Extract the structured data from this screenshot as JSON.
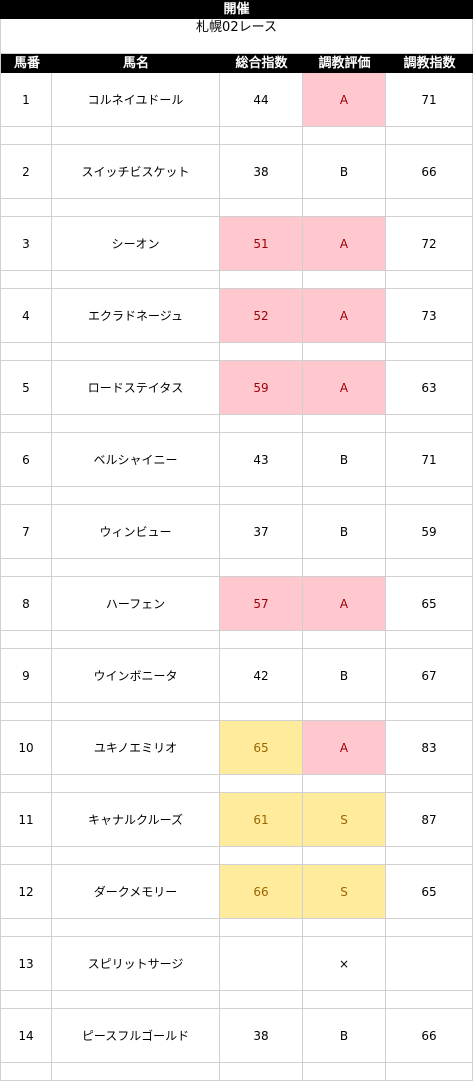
{
  "header": {
    "title": "開催",
    "race": "札幌02レース"
  },
  "columns": [
    "馬番",
    "馬名",
    "総合指数",
    "調教評価",
    "調教指数"
  ],
  "rows": [
    {
      "num": "1",
      "name": "コルネイユドール",
      "total": "44",
      "grade": "A",
      "train": "71",
      "total_hl": "",
      "grade_hl": "pink"
    },
    {
      "num": "2",
      "name": "スイッチビスケット",
      "total": "38",
      "grade": "B",
      "train": "66",
      "total_hl": "",
      "grade_hl": ""
    },
    {
      "num": "3",
      "name": "シーオン",
      "total": "51",
      "grade": "A",
      "train": "72",
      "total_hl": "pink",
      "grade_hl": "pink"
    },
    {
      "num": "4",
      "name": "エクラドネージュ",
      "total": "52",
      "grade": "A",
      "train": "73",
      "total_hl": "pink",
      "grade_hl": "pink"
    },
    {
      "num": "5",
      "name": "ロードステイタス",
      "total": "59",
      "grade": "A",
      "train": "63",
      "total_hl": "pink",
      "grade_hl": "pink"
    },
    {
      "num": "6",
      "name": "ベルシャイニー",
      "total": "43",
      "grade": "B",
      "train": "71",
      "total_hl": "",
      "grade_hl": ""
    },
    {
      "num": "7",
      "name": "ウィンビュー",
      "total": "37",
      "grade": "B",
      "train": "59",
      "total_hl": "",
      "grade_hl": ""
    },
    {
      "num": "8",
      "name": "ハーフェン",
      "total": "57",
      "grade": "A",
      "train": "65",
      "total_hl": "pink",
      "grade_hl": "pink"
    },
    {
      "num": "9",
      "name": "ウインボニータ",
      "total": "42",
      "grade": "B",
      "train": "67",
      "total_hl": "",
      "grade_hl": ""
    },
    {
      "num": "10",
      "name": "ユキノエミリオ",
      "total": "65",
      "grade": "A",
      "train": "83",
      "total_hl": "yellow",
      "grade_hl": "pink"
    },
    {
      "num": "11",
      "name": "キャナルクルーズ",
      "total": "61",
      "grade": "S",
      "train": "87",
      "total_hl": "yellow",
      "grade_hl": "yellow"
    },
    {
      "num": "12",
      "name": "ダークメモリー",
      "total": "66",
      "grade": "S",
      "train": "65",
      "total_hl": "yellow",
      "grade_hl": "yellow"
    },
    {
      "num": "13",
      "name": "スピリットサージ",
      "total": "",
      "grade": "×",
      "train": "",
      "total_hl": "",
      "grade_hl": ""
    },
    {
      "num": "14",
      "name": "ピースフルゴールド",
      "total": "38",
      "grade": "B",
      "train": "66",
      "total_hl": "",
      "grade_hl": ""
    }
  ]
}
